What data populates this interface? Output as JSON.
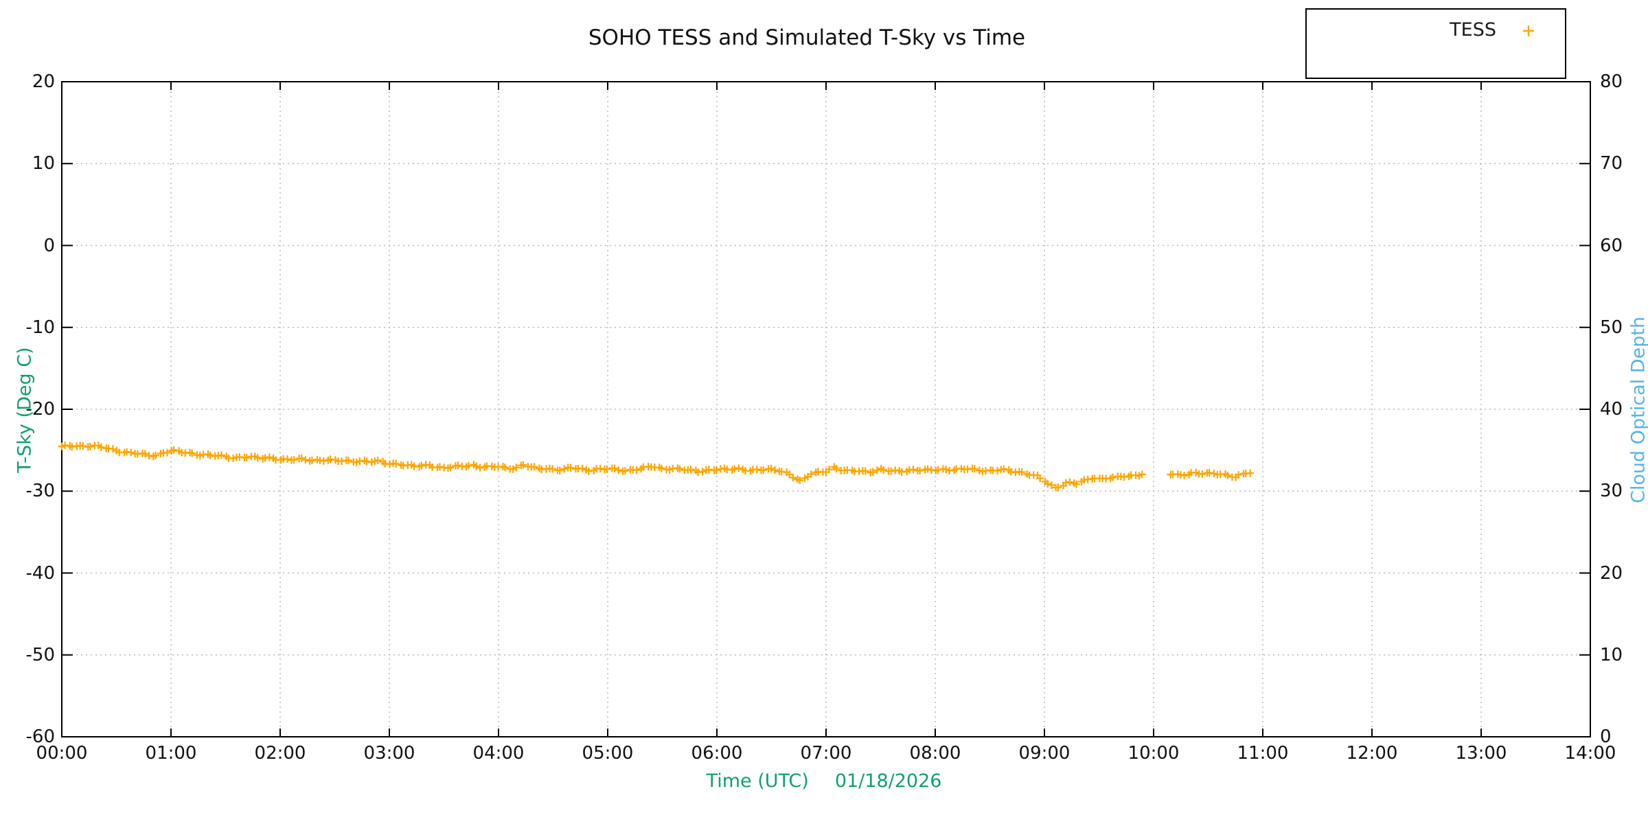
{
  "chart_data": {
    "type": "scatter",
    "title": "SOHO TESS and Simulated T-Sky vs Time",
    "xlabel": "Time (UTC)",
    "date_annotation": "01/18/2026",
    "ylabel_left": "T-Sky (Deg C)",
    "ylabel_right": "Cloud Optical Depth",
    "colors": {
      "series_orange": "#FFA500",
      "ylabel_left_green": "#10A06E",
      "ylabel_right_blue": "#56B4E9",
      "grid_gray": "#bababa",
      "axis_black": "#000000"
    },
    "x_axis": {
      "unit": "hours",
      "min": 0,
      "max": 14,
      "tick_labels": [
        "00:00",
        "01:00",
        "02:00",
        "03:00",
        "04:00",
        "05:00",
        "06:00",
        "07:00",
        "08:00",
        "09:00",
        "10:00",
        "11:00",
        "12:00",
        "13:00",
        "14:00"
      ]
    },
    "y_axis_left": {
      "min": -60,
      "max": 20,
      "ticks": [
        20,
        10,
        0,
        -10,
        -20,
        -30,
        -40,
        -50,
        -60
      ]
    },
    "y_axis_right": {
      "min": 0,
      "max": 80,
      "ticks": [
        80,
        70,
        60,
        50,
        40,
        30,
        20,
        10,
        0
      ]
    },
    "grid": {
      "shown": true,
      "style": "dotted"
    },
    "legend": {
      "position": "top-right-outside",
      "entries": [
        {
          "label": "TESS",
          "marker": "plus",
          "color": "#FFA500"
        }
      ]
    },
    "data_gap": {
      "from": "09:56",
      "to": "10:08"
    },
    "series": [
      {
        "name": "TESS",
        "axis": "left",
        "marker": "plus",
        "color": "#FFA500",
        "sample_interval_min": 2,
        "segments": [
          [
            [
              0,
              -24.6
            ],
            [
              4,
              -24.5
            ],
            [
              8,
              -24.4
            ],
            [
              12,
              -24.5
            ],
            [
              16,
              -24.5
            ],
            [
              20,
              -24.6
            ],
            [
              24,
              -24.7
            ],
            [
              28,
              -24.9
            ],
            [
              32,
              -25.1
            ],
            [
              36,
              -25.3
            ],
            [
              40,
              -25.4
            ],
            [
              44,
              -25.5
            ],
            [
              48,
              -25.6
            ],
            [
              52,
              -25.6
            ],
            [
              56,
              -25.3
            ],
            [
              60,
              -25.1
            ],
            [
              64,
              -25.2
            ],
            [
              68,
              -25.3
            ],
            [
              72,
              -25.4
            ],
            [
              76,
              -25.5
            ],
            [
              80,
              -25.6
            ],
            [
              85,
              -25.7
            ],
            [
              90,
              -25.8
            ],
            [
              95,
              -25.9
            ],
            [
              100,
              -25.8
            ],
            [
              105,
              -25.9
            ],
            [
              110,
              -26.0
            ],
            [
              115,
              -25.9
            ],
            [
              120,
              -26.1
            ],
            [
              126,
              -26.2
            ],
            [
              132,
              -26.1
            ],
            [
              138,
              -26.2
            ],
            [
              144,
              -26.2
            ],
            [
              150,
              -26.3
            ],
            [
              156,
              -26.3
            ],
            [
              162,
              -26.3
            ],
            [
              168,
              -26.4
            ],
            [
              174,
              -26.4
            ],
            [
              180,
              -26.6
            ],
            [
              186,
              -26.7
            ],
            [
              190,
              -26.9
            ],
            [
              194,
              -27.0
            ],
            [
              198,
              -26.9
            ],
            [
              202,
              -26.8
            ],
            [
              206,
              -27.0
            ],
            [
              210,
              -27.2
            ],
            [
              214,
              -27.1
            ],
            [
              218,
              -27.0
            ],
            [
              222,
              -26.9
            ],
            [
              226,
              -26.8
            ],
            [
              230,
              -27.0
            ],
            [
              235,
              -27.1
            ],
            [
              240,
              -27.0
            ],
            [
              245,
              -27.2
            ],
            [
              250,
              -27.1
            ],
            [
              254,
              -26.8
            ],
            [
              258,
              -27.1
            ],
            [
              262,
              -27.3
            ],
            [
              266,
              -27.2
            ],
            [
              270,
              -27.3
            ],
            [
              275,
              -27.4
            ],
            [
              280,
              -27.2
            ],
            [
              285,
              -27.3
            ],
            [
              290,
              -27.4
            ],
            [
              295,
              -27.3
            ],
            [
              300,
              -27.3
            ],
            [
              305,
              -27.4
            ],
            [
              310,
              -27.5
            ],
            [
              315,
              -27.3
            ],
            [
              320,
              -27.2
            ],
            [
              325,
              -27.0
            ],
            [
              330,
              -27.3
            ],
            [
              335,
              -27.2
            ],
            [
              340,
              -27.3
            ],
            [
              345,
              -27.5
            ],
            [
              350,
              -27.6
            ],
            [
              355,
              -27.4
            ],
            [
              360,
              -27.3
            ],
            [
              366,
              -27.4
            ],
            [
              372,
              -27.3
            ],
            [
              378,
              -27.4
            ],
            [
              384,
              -27.4
            ],
            [
              390,
              -27.4
            ],
            [
              395,
              -27.5
            ],
            [
              400,
              -27.9
            ],
            [
              404,
              -28.5
            ],
            [
              406,
              -28.8
            ],
            [
              409,
              -28.4
            ],
            [
              412,
              -27.9
            ],
            [
              416,
              -27.7
            ],
            [
              420,
              -27.5
            ],
            [
              424,
              -27.1
            ],
            [
              428,
              -27.4
            ],
            [
              432,
              -27.6
            ],
            [
              438,
              -27.5
            ],
            [
              444,
              -27.6
            ],
            [
              450,
              -27.4
            ],
            [
              456,
              -27.6
            ],
            [
              462,
              -27.5
            ],
            [
              468,
              -27.4
            ],
            [
              474,
              -27.5
            ],
            [
              480,
              -27.4
            ],
            [
              486,
              -27.3
            ],
            [
              492,
              -27.4
            ],
            [
              498,
              -27.3
            ],
            [
              504,
              -27.4
            ],
            [
              510,
              -27.5
            ],
            [
              516,
              -27.4
            ],
            [
              522,
              -27.6
            ],
            [
              528,
              -27.7
            ],
            [
              532,
              -27.9
            ],
            [
              536,
              -28.2
            ],
            [
              540,
              -28.8
            ],
            [
              543,
              -29.3
            ],
            [
              546,
              -29.6
            ],
            [
              549,
              -29.3
            ],
            [
              552,
              -29.0
            ],
            [
              555,
              -28.9
            ],
            [
              558,
              -29.1
            ],
            [
              562,
              -28.8
            ],
            [
              566,
              -28.4
            ],
            [
              570,
              -28.5
            ],
            [
              574,
              -28.3
            ],
            [
              578,
              -28.4
            ],
            [
              582,
              -28.2
            ],
            [
              586,
              -28.3
            ],
            [
              590,
              -28.0
            ],
            [
              594,
              -27.9
            ]
          ],
          [
            [
              609,
              -27.9
            ],
            [
              614,
              -28.0
            ],
            [
              618,
              -27.9
            ],
            [
              622,
              -27.8
            ],
            [
              626,
              -27.9
            ],
            [
              630,
              -27.9
            ],
            [
              634,
              -27.8
            ],
            [
              638,
              -27.9
            ],
            [
              642,
              -28.1
            ],
            [
              645,
              -28.3
            ],
            [
              648,
              -28.1
            ],
            [
              651,
              -27.8
            ],
            [
              654,
              -27.7
            ]
          ]
        ]
      }
    ]
  }
}
